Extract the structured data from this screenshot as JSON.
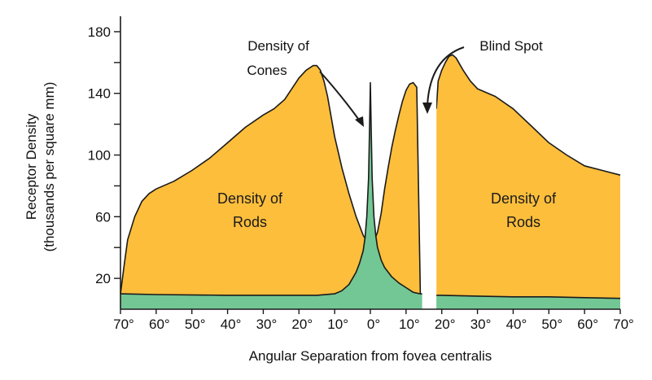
{
  "chart_data": {
    "type": "area",
    "xlabel": "Angular Separation from fovea centralis",
    "ylabel": [
      "Receptor Density",
      "(thousands per square mm)"
    ],
    "xlim": [
      -70,
      70
    ],
    "ylim": [
      0,
      190
    ],
    "x_ticks": [
      {
        "value": -70,
        "label": "70°"
      },
      {
        "value": -60,
        "label": "60°"
      },
      {
        "value": -50,
        "label": "50°"
      },
      {
        "value": -40,
        "label": "40°"
      },
      {
        "value": -30,
        "label": "30°"
      },
      {
        "value": -20,
        "label": "20°"
      },
      {
        "value": -10,
        "label": "10°"
      },
      {
        "value": 0,
        "label": "0°"
      },
      {
        "value": 10,
        "label": "10°"
      },
      {
        "value": 20,
        "label": "20°"
      },
      {
        "value": 30,
        "label": "30°"
      },
      {
        "value": 40,
        "label": "40°"
      },
      {
        "value": 50,
        "label": "50°"
      },
      {
        "value": 60,
        "label": "60°"
      },
      {
        "value": 70,
        "label": "70°"
      }
    ],
    "y_ticks": [
      {
        "value": 20,
        "label": "20"
      },
      {
        "value": 60,
        "label": "60"
      },
      {
        "value": 100,
        "label": "100"
      },
      {
        "value": 140,
        "label": "140"
      },
      {
        "value": 180,
        "label": "180"
      }
    ],
    "blind_spot": [
      14.5,
      18.5
    ],
    "colors": {
      "rods": "#FDBE3C",
      "cones": "#73C794",
      "outline": "#1a1a1a"
    },
    "series": [
      {
        "name": "Density of Rods",
        "segments": [
          {
            "x": [
              -70,
              -69,
              -68,
              -66,
              -64,
              -62,
              -60,
              -55,
              -50,
              -45,
              -40,
              -35,
              -30,
              -27,
              -24,
              -20,
              -18,
              -16,
              -15,
              -14,
              -13,
              -12,
              -10,
              -8,
              -6,
              -4,
              -2,
              -1,
              0
            ],
            "y": [
              10,
              28,
              45,
              60,
              70,
              75,
              78,
              83,
              90,
              98,
              108,
              118,
              126,
              130,
              136,
              150,
              155,
              158,
              158,
              155,
              148,
              138,
              112,
              92,
              75,
              60,
              48,
              44,
              42
            ]
          },
          {
            "x": [
              0,
              1,
              2,
              3,
              4,
              5,
              6,
              7,
              8,
              9,
              10,
              11,
              12,
              13,
              14
            ],
            "y": [
              42,
              44,
              50,
              62,
              78,
              92,
              105,
              116,
              126,
              135,
              142,
              146,
              147,
              144,
              10
            ]
          },
          {
            "x": [
              18.5,
              19,
              20,
              21,
              22,
              23,
              24,
              26,
              28,
              30,
              35,
              40,
              45,
              50,
              55,
              60,
              65,
              70
            ],
            "y": [
              130,
              148,
              155,
              160,
              164,
              165,
              163,
              155,
              148,
              143,
              138,
              130,
              119,
              108,
              100,
              93,
              90,
              87
            ]
          }
        ]
      },
      {
        "name": "Density of Cones",
        "x": [
          -70,
          -60,
          -40,
          -20,
          -15,
          -10,
          -8,
          -6,
          -4,
          -3,
          -2,
          -1.5,
          -1,
          -0.5,
          -0.25,
          0,
          0.25,
          0.5,
          1,
          1.5,
          2,
          3,
          4,
          6,
          8,
          10,
          12,
          14,
          18.5,
          20,
          30,
          40,
          50,
          60,
          70
        ],
        "y": [
          10,
          9.5,
          9,
          9,
          9,
          10,
          12,
          16,
          24,
          30,
          38,
          46,
          60,
          85,
          115,
          147,
          115,
          85,
          60,
          48,
          40,
          32,
          27,
          21,
          17,
          14,
          11,
          10,
          9,
          9,
          8.5,
          8,
          8,
          7.5,
          7
        ]
      }
    ],
    "annotations": {
      "rods_left": [
        "Density of",
        "Rods"
      ],
      "rods_right": [
        "Density of",
        "Rods"
      ],
      "cones_label": [
        "Density of",
        "Cones"
      ],
      "blind_spot_label": "Blind Spot"
    }
  }
}
